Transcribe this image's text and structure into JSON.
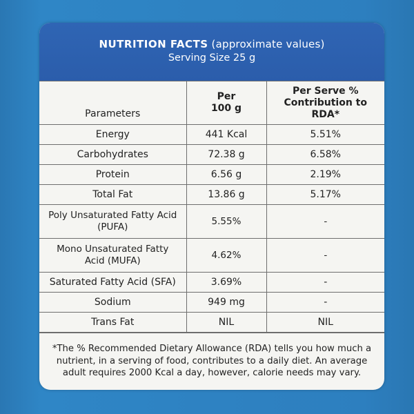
{
  "header": {
    "title": "NUTRITION FACTS",
    "subtitle": "(approximate values)",
    "serving": "Serving Size 25 g"
  },
  "table": {
    "col_headers": [
      "Parameters",
      "Per\n100 g",
      "Per Serve %\nContribution to RDA*"
    ],
    "rows": [
      [
        "Energy",
        "441 Kcal",
        "5.51%"
      ],
      [
        "Carbohydrates",
        "72.38 g",
        "6.58%"
      ],
      [
        "Protein",
        "6.56 g",
        "2.19%"
      ],
      [
        "Total Fat",
        "13.86 g",
        "5.17%"
      ],
      [
        "Poly Unsaturated Fatty Acid\n(PUFA)",
        "5.55%",
        "-"
      ],
      [
        "Mono Unsaturated Fatty\nAcid (MUFA)",
        "4.62%",
        "-"
      ],
      [
        "Saturated Fatty Acid (SFA)",
        "3.69%",
        "-"
      ],
      [
        "Sodium",
        "949 mg",
        "-"
      ],
      [
        "Trans Fat",
        "NIL",
        "NIL"
      ]
    ]
  },
  "footnote": "*The % Recommended Dietary Allowance (RDA) tells you how much a nutrient, in a serving of food, contributes to a daily diet. An average adult requires 2000 Kcal a day, however, calorie needs may vary."
}
